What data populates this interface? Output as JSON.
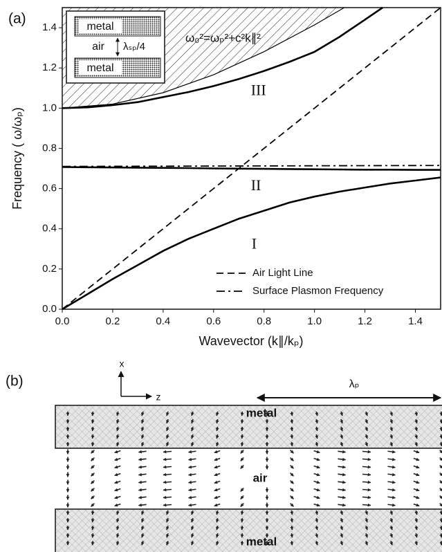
{
  "chart_data": {
    "type": "line",
    "panel_label": "(a)",
    "xlabel": "Wavevector (k∥/kₚ)",
    "ylabel": "Frequency ( ω/ωₚ)",
    "annotation": "ω₀²=ωₚ²+c²k∥²",
    "xlim": [
      0,
      1.5
    ],
    "ylim": [
      0,
      1.5
    ],
    "xticks": [
      {
        "value": 0,
        "label": "0.0"
      },
      0.2,
      0.4,
      0.6,
      0.8,
      {
        "value": 1,
        "label": "1.0"
      },
      1.2,
      1.4
    ],
    "yticks": [
      {
        "value": 0,
        "label": "0.0"
      },
      0.2,
      0.4,
      0.6,
      0.8,
      {
        "value": 1,
        "label": "1.0"
      },
      1.2,
      1.4
    ],
    "legend": "lower right",
    "series": [
      {
        "name": "Air Light Line",
        "color": "#000000",
        "dash": "dashed",
        "x": [
          0,
          1.5
        ],
        "values": [
          0,
          1.5
        ]
      },
      {
        "name": "Surface Plasmon Frequency",
        "color": "#000000",
        "dash": "dashdot",
        "x": [
          0,
          1.5
        ],
        "values": [
          0.71,
          0.715
        ]
      },
      {
        "label": "I",
        "color": "#000000",
        "dash": "solid",
        "x": [
          0,
          0.1,
          0.2,
          0.3,
          0.4,
          0.5,
          0.6,
          0.7,
          0.8,
          0.9,
          1.0,
          1.1,
          1.2,
          1.3,
          1.4,
          1.5
        ],
        "values": [
          0,
          0.075,
          0.15,
          0.22,
          0.29,
          0.35,
          0.4,
          0.45,
          0.49,
          0.53,
          0.56,
          0.585,
          0.605,
          0.625,
          0.64,
          0.655
        ]
      },
      {
        "label": "II",
        "color": "#000000",
        "dash": "solid",
        "x": [
          0,
          0.1,
          0.2,
          0.3,
          0.4,
          0.5,
          0.6,
          0.7,
          0.8,
          0.9,
          1.0,
          1.1,
          1.2,
          1.3,
          1.4,
          1.5
        ],
        "values": [
          0.707,
          0.706,
          0.705,
          0.704,
          0.703,
          0.702,
          0.7,
          0.699,
          0.698,
          0.697,
          0.696,
          0.695,
          0.694,
          0.694,
          0.693,
          0.693
        ]
      },
      {
        "label": "III",
        "color": "#000000",
        "dash": "solid",
        "x": [
          0,
          0.1,
          0.2,
          0.3,
          0.4,
          0.5,
          0.6,
          0.7,
          0.8,
          0.9,
          1.0,
          1.1,
          1.2,
          1.27
        ],
        "values": [
          1.0,
          1.004,
          1.015,
          1.03,
          1.055,
          1.08,
          1.11,
          1.145,
          1.185,
          1.23,
          1.28,
          1.355,
          1.44,
          1.5
        ]
      },
      {
        "color": "#000000",
        "dash": "solid",
        "fill": "hatch",
        "x": [
          0,
          0.2,
          0.4,
          0.6,
          0.8,
          1.0,
          1.118
        ],
        "values": [
          1.0,
          1.02,
          1.077,
          1.166,
          1.281,
          1.414,
          1.5
        ]
      }
    ]
  },
  "inset": {
    "top": "metal",
    "gap": "air",
    "spacing": "λₛₚ/4",
    "bottom": "metal"
  },
  "diagram": {
    "panel_label": "(b)",
    "axis_x": "x",
    "axis_z": "z",
    "wavelength": "λₚ",
    "top": "metal",
    "middle": "air",
    "bottom": "metal"
  }
}
